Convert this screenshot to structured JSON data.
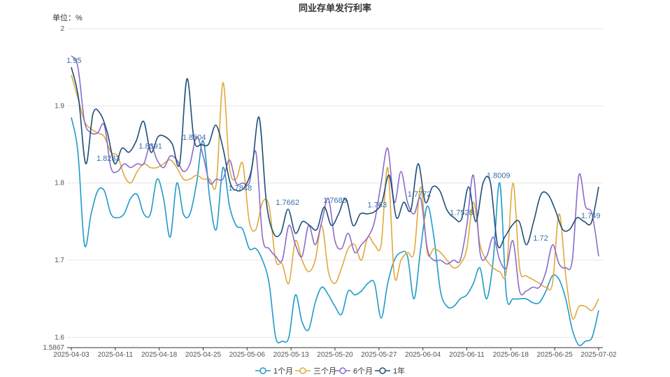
{
  "chart_data": {
    "type": "line",
    "title": "同业存单发行利率",
    "unit_label": "单位：%",
    "x_ticks": [
      "2025-04-03",
      "2025-04-11",
      "2025-04-18",
      "2025-04-25",
      "2025-05-06",
      "2025-05-13",
      "2025-05-20",
      "2025-05-27",
      "2025-06-04",
      "2025-06-11",
      "2025-06-18",
      "2025-06-25",
      "2025-07-02"
    ],
    "y_ticks": [
      "1.5867",
      "1.6",
      "1.7",
      "1.8",
      "1.9",
      "2"
    ],
    "ylim": [
      1.5867,
      2
    ],
    "grid": true,
    "legend_position": "bottom",
    "series": [
      {
        "name": "1个月",
        "color": "#1f9bc8",
        "values": [
          1.885,
          1.84,
          1.72,
          1.76,
          1.79,
          1.79,
          1.76,
          1.755,
          1.76,
          1.78,
          1.785,
          1.76,
          1.76,
          1.805,
          1.78,
          1.73,
          1.8,
          1.76,
          1.76,
          1.8,
          1.855,
          1.78,
          1.74,
          1.82,
          1.77,
          1.745,
          1.74,
          1.715,
          1.715,
          1.7,
          1.67,
          1.6,
          1.595,
          1.6,
          1.655,
          1.62,
          1.61,
          1.645,
          1.665,
          1.655,
          1.64,
          1.63,
          1.66,
          1.655,
          1.66,
          1.67,
          1.67,
          1.625,
          1.67,
          1.7,
          1.71,
          1.705,
          1.65,
          1.715,
          1.77,
          1.73,
          1.66,
          1.64,
          1.64,
          1.65,
          1.655,
          1.67,
          1.69,
          1.65,
          1.7,
          1.8,
          1.655,
          1.65,
          1.65,
          1.65,
          1.645,
          1.645,
          1.66,
          1.68,
          1.675,
          1.65,
          1.61,
          1.59,
          1.595,
          1.6,
          1.635
        ]
      },
      {
        "name": "三个月",
        "color": "#e0a93c",
        "values": [
          1.94,
          1.91,
          1.88,
          1.87,
          1.865,
          1.86,
          1.84,
          1.835,
          1.81,
          1.8,
          1.815,
          1.825,
          1.82,
          1.82,
          1.825,
          1.83,
          1.82,
          1.805,
          1.805,
          1.81,
          1.805,
          1.805,
          1.8,
          1.93,
          1.82,
          1.805,
          1.825,
          1.75,
          1.74,
          1.775,
          1.77,
          1.7,
          1.695,
          1.67,
          1.725,
          1.7,
          1.685,
          1.7,
          1.745,
          1.685,
          1.67,
          1.69,
          1.715,
          1.72,
          1.7,
          1.73,
          1.72,
          1.72,
          1.82,
          1.68,
          1.7,
          1.71,
          1.71,
          1.795,
          1.71,
          1.715,
          1.71,
          1.7,
          1.69,
          1.695,
          1.715,
          1.775,
          1.72,
          1.7,
          1.69,
          1.685,
          1.685,
          1.8,
          1.69,
          1.68,
          1.675,
          1.67,
          1.665,
          1.67,
          1.76,
          1.68,
          1.625,
          1.64,
          1.64,
          1.635,
          1.65
        ]
      },
      {
        "name": "6个月",
        "color": "#8a6cc9",
        "values": [
          1.965,
          1.95,
          1.88,
          1.865,
          1.865,
          1.875,
          1.82,
          1.815,
          1.825,
          1.82,
          1.825,
          1.825,
          1.85,
          1.83,
          1.82,
          1.835,
          1.83,
          1.815,
          1.825,
          1.86,
          1.835,
          1.8,
          1.805,
          1.805,
          1.83,
          1.8,
          1.8,
          1.8,
          1.84,
          1.73,
          1.715,
          1.705,
          1.7,
          1.745,
          1.72,
          1.705,
          1.745,
          1.72,
          1.75,
          1.78,
          1.725,
          1.715,
          1.735,
          1.71,
          1.72,
          1.73,
          1.75,
          1.8,
          1.845,
          1.775,
          1.815,
          1.775,
          1.76,
          1.78,
          1.715,
          1.7,
          1.7,
          1.695,
          1.7,
          1.7,
          1.745,
          1.81,
          1.71,
          1.705,
          1.73,
          1.7,
          1.69,
          1.725,
          1.66,
          1.66,
          1.665,
          1.665,
          1.685,
          1.72,
          1.695,
          1.69,
          1.7,
          1.81,
          1.77,
          1.76,
          1.705
        ]
      },
      {
        "name": "1年",
        "color": "#1d4f7a",
        "values": [
          1.95,
          1.91,
          1.825,
          1.89,
          1.89,
          1.865,
          1.825,
          1.845,
          1.84,
          1.855,
          1.88,
          1.84,
          1.86,
          1.86,
          1.85,
          1.825,
          1.935,
          1.855,
          1.85,
          1.8504,
          1.875,
          1.845,
          1.8,
          1.79,
          1.795,
          1.82,
          1.885,
          1.775,
          1.735,
          1.735,
          1.7662,
          1.735,
          1.75,
          1.745,
          1.74,
          1.7688,
          1.745,
          1.76,
          1.78,
          1.745,
          1.76,
          1.76,
          1.763,
          1.775,
          1.81,
          1.755,
          1.775,
          1.765,
          1.825,
          1.775,
          1.795,
          1.79,
          1.765,
          1.755,
          1.7528,
          1.795,
          1.75,
          1.8,
          1.8009,
          1.72,
          1.73,
          1.745,
          1.75,
          1.72,
          1.75,
          1.785,
          1.785,
          1.765,
          1.74,
          1.74,
          1.755,
          1.75,
          1.749,
          1.795
        ]
      }
    ],
    "annotations": [
      "1.95",
      "1.8233",
      "1.8391",
      "1.8504",
      "1.7848",
      "1.7662",
      "1.7688",
      "1.763",
      "1.7772",
      "1.7528",
      "1.8009",
      "1.72",
      "1.749"
    ]
  }
}
